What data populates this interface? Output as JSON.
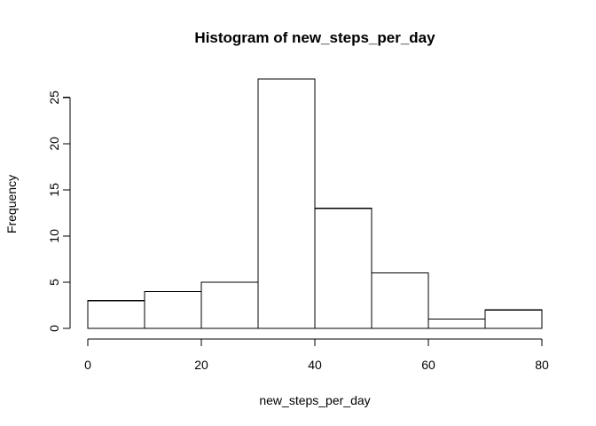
{
  "chart_data": {
    "type": "bar",
    "title": "Histogram of new_steps_per_day",
    "xlabel": "new_steps_per_day",
    "ylabel": "Frequency",
    "bins": [
      {
        "start": 0,
        "end": 10,
        "count": 3
      },
      {
        "start": 10,
        "end": 20,
        "count": 4
      },
      {
        "start": 20,
        "end": 30,
        "count": 5
      },
      {
        "start": 30,
        "end": 40,
        "count": 27
      },
      {
        "start": 40,
        "end": 50,
        "count": 13
      },
      {
        "start": 50,
        "end": 60,
        "count": 6
      },
      {
        "start": 60,
        "end": 70,
        "count": 1
      },
      {
        "start": 70,
        "end": 80,
        "count": 2
      }
    ],
    "xlim": [
      0,
      80
    ],
    "ylim": [
      0,
      27
    ],
    "x_ticks": [
      0,
      20,
      40,
      60,
      80
    ],
    "y_ticks": [
      0,
      5,
      10,
      15,
      20,
      25
    ],
    "grid": false,
    "colors": {
      "bar_fill": "#ffffff",
      "bar_stroke": "#000000",
      "axis": "#000000"
    }
  }
}
